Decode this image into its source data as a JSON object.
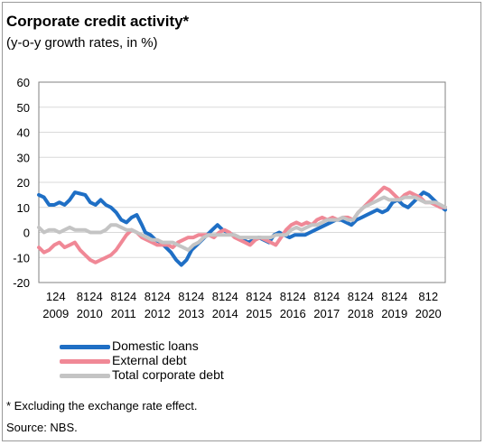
{
  "chart_data": {
    "type": "line",
    "title": "Corporate credit activity*",
    "subtitle": "(y-o-y growth rates, in %)",
    "ylim": [
      -20,
      60
    ],
    "yticks": [
      60,
      50,
      40,
      30,
      20,
      10,
      0,
      -10,
      -20
    ],
    "grid": true,
    "legend_position": "bottom",
    "years": [
      "2009",
      "2010",
      "2011",
      "2012",
      "2013",
      "2014",
      "2015",
      "2016",
      "2017",
      "2018",
      "2019",
      "2020"
    ],
    "month_tick_labels": [
      "124",
      "8124",
      "8124",
      "8124",
      "8124",
      "8124",
      "8124",
      "8124",
      "8124",
      "8124",
      "8124",
      "812"
    ],
    "x_start": 2009.0,
    "x_end": 2020.833,
    "series": [
      {
        "name": "Domestic loans",
        "color": "#1f6fc5",
        "x": [
          2009.0,
          2009.15,
          2009.3,
          2009.45,
          2009.6,
          2009.75,
          2009.9,
          2010.05,
          2010.2,
          2010.35,
          2010.5,
          2010.65,
          2010.8,
          2010.95,
          2011.1,
          2011.25,
          2011.4,
          2011.55,
          2011.7,
          2011.85,
          2012.0,
          2012.1,
          2012.25,
          2012.4,
          2012.55,
          2012.7,
          2012.85,
          2013.0,
          2013.15,
          2013.3,
          2013.45,
          2013.6,
          2013.75,
          2013.9,
          2014.05,
          2014.2,
          2014.35,
          2014.5,
          2014.65,
          2014.8,
          2014.95,
          2015.1,
          2015.25,
          2015.4,
          2015.55,
          2015.7,
          2015.85,
          2016.0,
          2016.15,
          2016.3,
          2016.45,
          2016.6,
          2016.75,
          2016.9,
          2017.05,
          2017.2,
          2017.35,
          2017.5,
          2017.65,
          2017.8,
          2017.95,
          2018.1,
          2018.25,
          2018.4,
          2018.55,
          2018.7,
          2018.85,
          2019.0,
          2019.15,
          2019.3,
          2019.45,
          2019.6,
          2019.75,
          2019.9,
          2020.05,
          2020.2,
          2020.35,
          2020.5,
          2020.65,
          2020.833
        ],
        "values": [
          15,
          14,
          11,
          11,
          12,
          11,
          13,
          16,
          15.5,
          15,
          12,
          11,
          13,
          11,
          10,
          8,
          5,
          4,
          6,
          7,
          3,
          0,
          -1,
          -3,
          -4,
          -6,
          -8,
          -11,
          -13,
          -11,
          -7,
          -5,
          -3,
          -1,
          1,
          3,
          1,
          0,
          -1,
          -2,
          -3,
          -4,
          -3,
          -2,
          -3,
          -4,
          -1,
          0,
          -1,
          -2,
          -1,
          -1,
          -1,
          0,
          1,
          2,
          3,
          4,
          5,
          5,
          4,
          3,
          5,
          6,
          7,
          8,
          9,
          8,
          9,
          12,
          13,
          11,
          10,
          12,
          14,
          16,
          15,
          13,
          11,
          9
        ]
      },
      {
        "name": "External debt",
        "color": "#f08896",
        "x": [
          2009.0,
          2009.15,
          2009.3,
          2009.45,
          2009.6,
          2009.75,
          2009.9,
          2010.05,
          2010.2,
          2010.35,
          2010.5,
          2010.65,
          2010.8,
          2010.95,
          2011.1,
          2011.25,
          2011.4,
          2011.55,
          2011.7,
          2011.85,
          2012.0,
          2012.15,
          2012.3,
          2012.45,
          2012.6,
          2012.75,
          2012.9,
          2013.05,
          2013.2,
          2013.35,
          2013.5,
          2013.65,
          2013.8,
          2013.95,
          2014.1,
          2014.25,
          2014.4,
          2014.55,
          2014.7,
          2014.85,
          2015.0,
          2015.15,
          2015.3,
          2015.45,
          2015.6,
          2015.75,
          2015.9,
          2016.05,
          2016.2,
          2016.35,
          2016.5,
          2016.65,
          2016.8,
          2016.95,
          2017.1,
          2017.25,
          2017.4,
          2017.55,
          2017.7,
          2017.85,
          2018.0,
          2018.15,
          2018.3,
          2018.45,
          2018.6,
          2018.75,
          2018.9,
          2019.05,
          2019.2,
          2019.35,
          2019.5,
          2019.65,
          2019.8,
          2019.95,
          2020.1,
          2020.25,
          2020.4,
          2020.55,
          2020.7,
          2020.833
        ],
        "values": [
          -6,
          -8,
          -7,
          -5,
          -4,
          -6,
          -5,
          -4,
          -7,
          -9,
          -11,
          -12,
          -11,
          -10,
          -9,
          -7,
          -4,
          -1,
          1,
          0,
          -2,
          -3,
          -4,
          -5,
          -5,
          -5,
          -6,
          -4,
          -3,
          -2,
          -2,
          -1,
          -1,
          -1,
          -2,
          0,
          1,
          0,
          -2,
          -3,
          -4,
          -5,
          -3,
          -2,
          -3,
          -4,
          -5,
          -2,
          1,
          3,
          4,
          3,
          4,
          3,
          5,
          6,
          5,
          6,
          5,
          6,
          6,
          5,
          8,
          10,
          12,
          14,
          16,
          18,
          17,
          15,
          13,
          15,
          16,
          15,
          14,
          12,
          12,
          11,
          10,
          10
        ]
      },
      {
        "name": "Total corporate debt",
        "color": "#c4c4c4",
        "x": [
          2009.0,
          2009.15,
          2009.3,
          2009.45,
          2009.6,
          2009.75,
          2009.9,
          2010.05,
          2010.2,
          2010.35,
          2010.5,
          2010.65,
          2010.8,
          2010.95,
          2011.1,
          2011.25,
          2011.4,
          2011.55,
          2011.7,
          2011.85,
          2012.0,
          2012.15,
          2012.3,
          2012.45,
          2012.6,
          2012.75,
          2012.9,
          2013.05,
          2013.2,
          2013.35,
          2013.5,
          2013.65,
          2013.8,
          2013.95,
          2014.1,
          2014.25,
          2014.4,
          2014.55,
          2014.7,
          2014.85,
          2015.0,
          2015.15,
          2015.3,
          2015.45,
          2015.6,
          2015.75,
          2015.9,
          2016.05,
          2016.2,
          2016.35,
          2016.5,
          2016.65,
          2016.8,
          2016.95,
          2017.1,
          2017.25,
          2017.4,
          2017.55,
          2017.7,
          2017.85,
          2018.0,
          2018.15,
          2018.3,
          2018.45,
          2018.6,
          2018.75,
          2018.9,
          2019.05,
          2019.2,
          2019.35,
          2019.5,
          2019.65,
          2019.8,
          2019.95,
          2020.1,
          2020.25,
          2020.4,
          2020.55,
          2020.7,
          2020.833
        ],
        "values": [
          2,
          0,
          1,
          1,
          0,
          1,
          2,
          1,
          1,
          1,
          0,
          0,
          0,
          1,
          3,
          3,
          2,
          1,
          1,
          0,
          -1,
          -2,
          -3,
          -3,
          -4,
          -4,
          -4,
          -5,
          -6,
          -7,
          -5,
          -4,
          -2,
          -1,
          -1,
          -1,
          -1,
          -1,
          -1,
          -2,
          -2,
          -2,
          -2,
          -2,
          -2,
          -2,
          -1,
          -1,
          -1,
          1,
          2,
          1,
          2,
          3,
          3,
          4,
          5,
          5,
          5,
          6,
          5,
          5,
          8,
          10,
          11,
          12,
          13,
          14,
          13,
          13,
          13,
          14,
          14,
          14,
          13,
          12,
          12,
          12,
          11,
          10
        ]
      }
    ]
  },
  "notes": {
    "footnote": "* Excluding the exchange rate effect.",
    "source": "Source: NBS."
  }
}
